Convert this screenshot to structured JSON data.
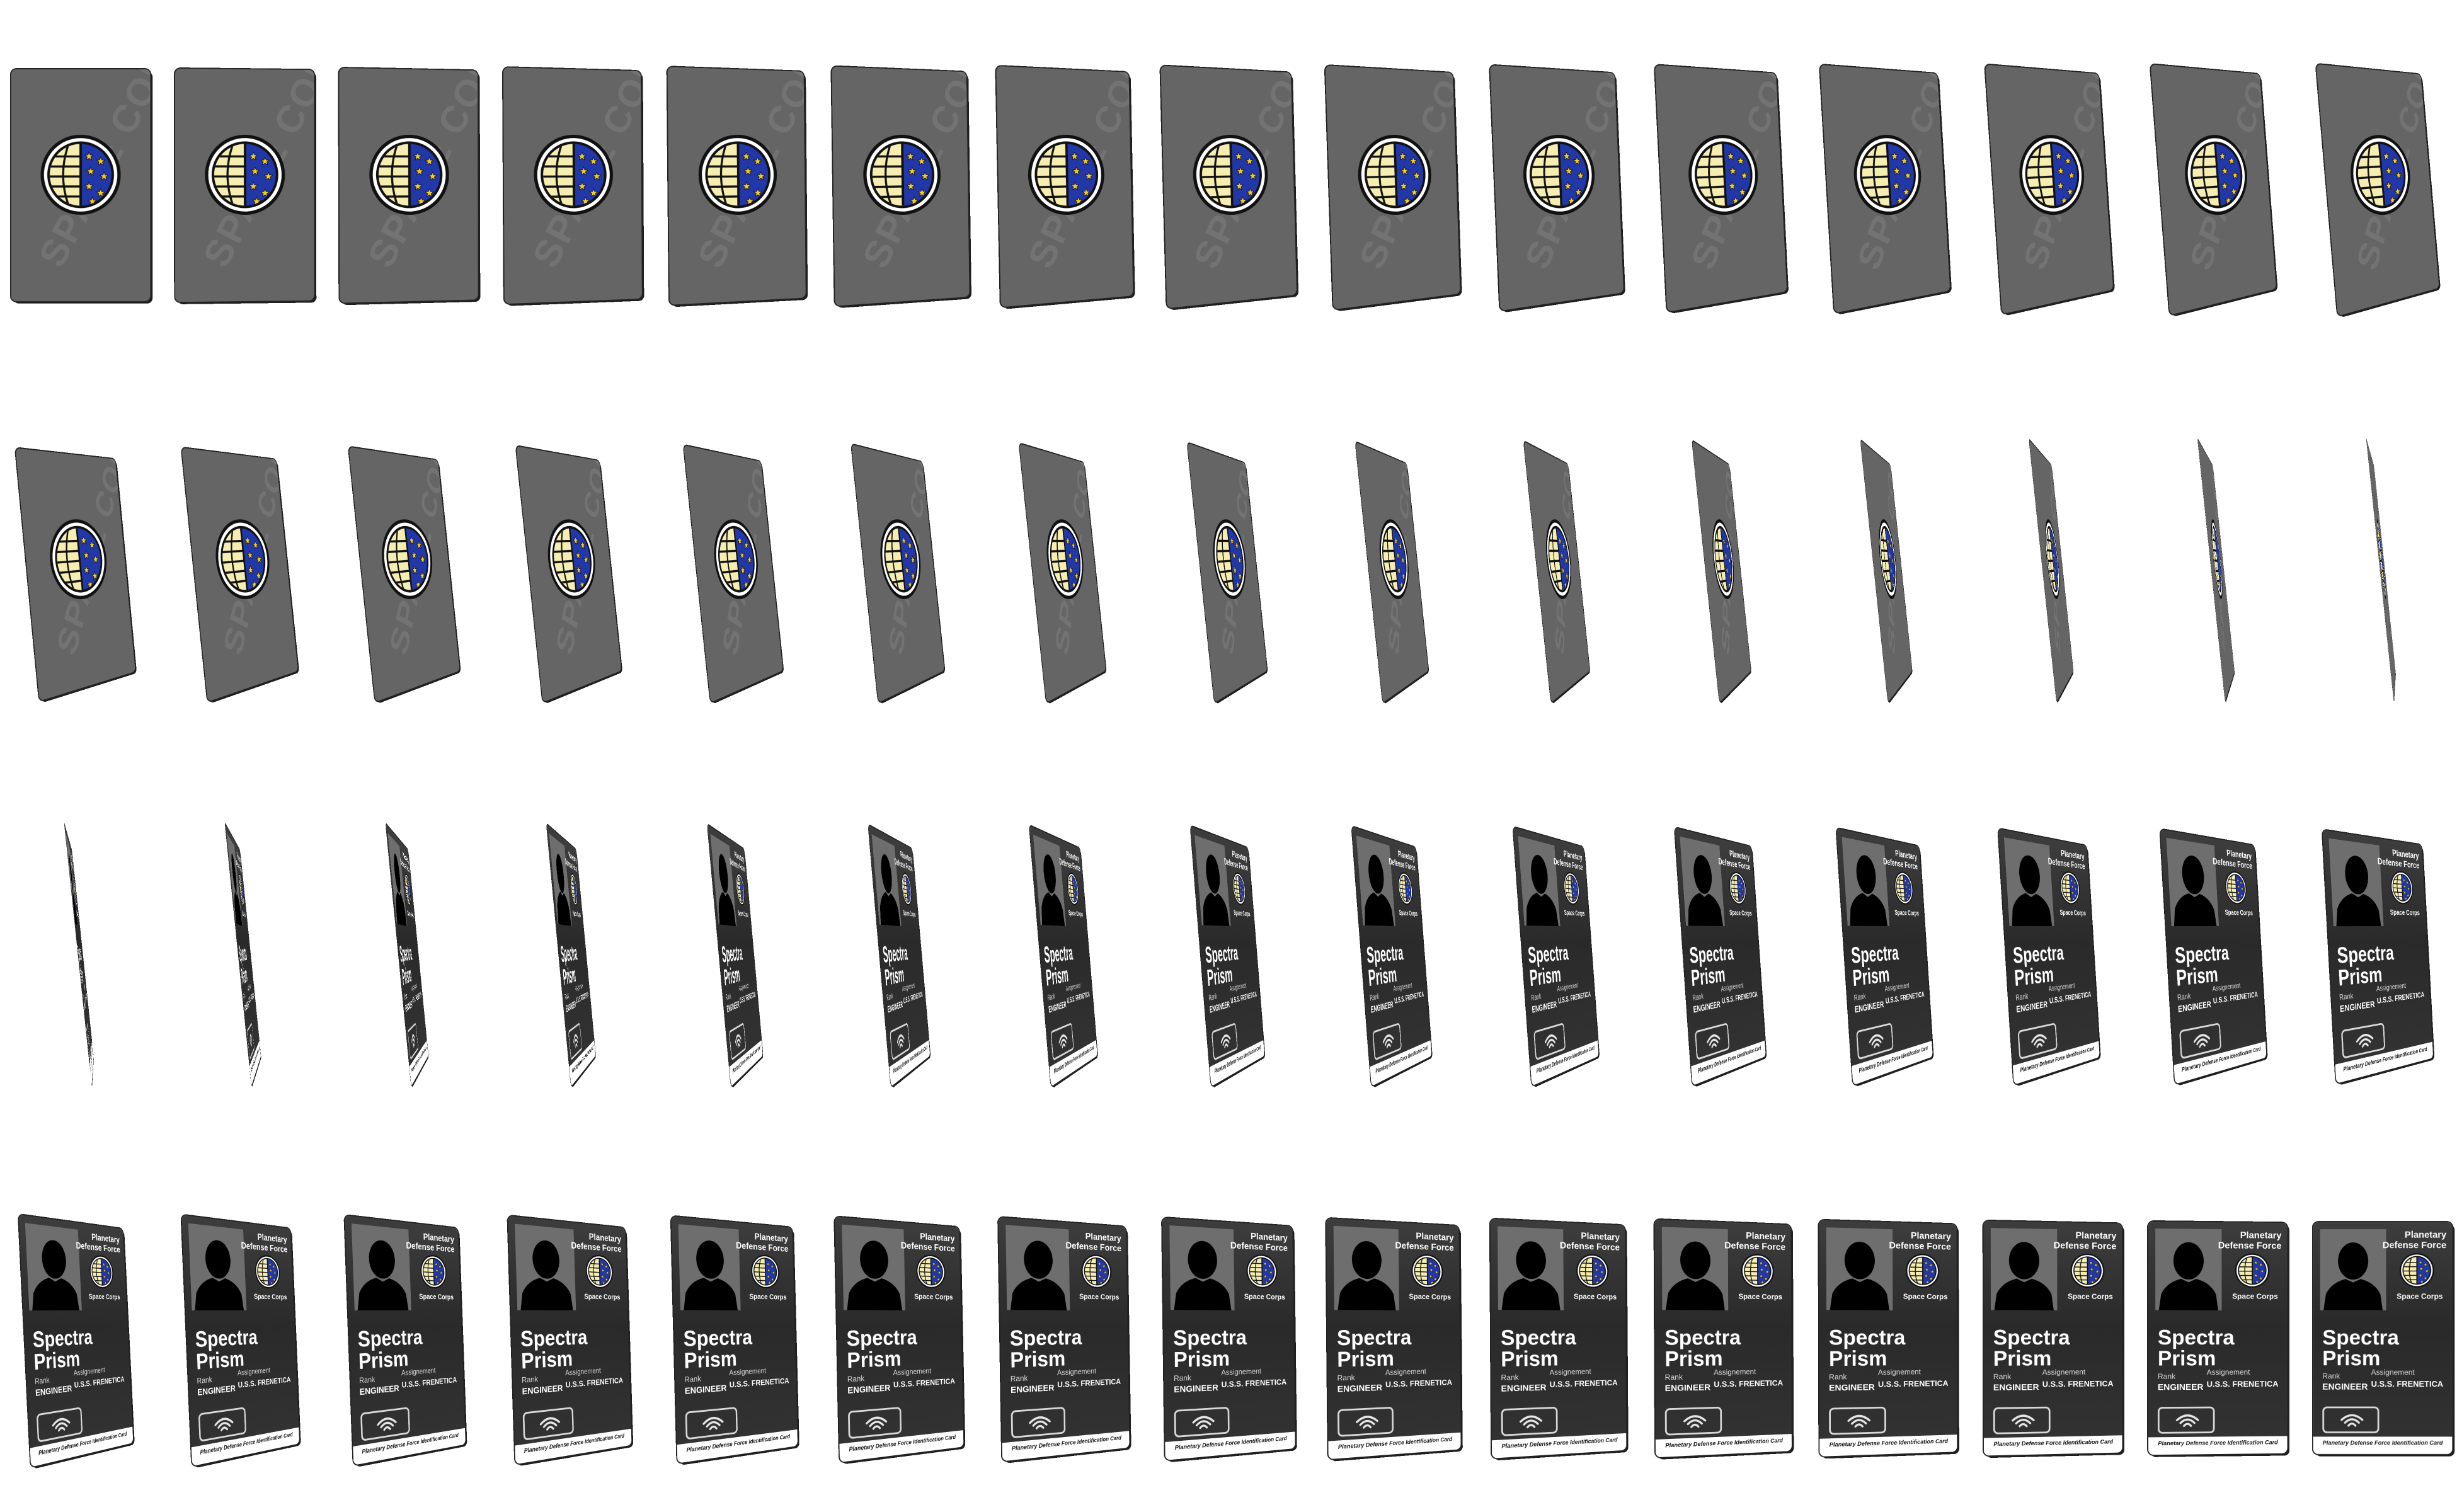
{
  "sprite_sheet": {
    "background": "#ffffff",
    "rows": 4,
    "frames_per_row": 15,
    "frame_count": 60,
    "row_faces": [
      "back",
      "back",
      "front",
      "front"
    ],
    "back": {
      "watermark": "SPACE CORPS",
      "color": "#656565",
      "watermark_color": "#737373"
    },
    "front": {
      "org_line_1": "Planetary",
      "org_line_2": "Defense Force",
      "corps": "Space Corps",
      "name_line_1": "Spectra",
      "name_line_2": "Prism",
      "rank_label": "Rank",
      "rank_value": "ENGINEER",
      "assignment_label": "Assignement",
      "assignment_value": "U.S.S. FRENETICA",
      "footer": "Planetary Defense Force Identification Card",
      "photo_icon": "person-silhouette-icon",
      "chip_icon": "contactless-icon"
    },
    "emblem": {
      "icon": "globe-and-stars-emblem-icon",
      "globe_color": "#f6eeb0",
      "field_color": "#2237a8",
      "star_color": "#f2cc2a",
      "ring_color": "#111111"
    }
  }
}
